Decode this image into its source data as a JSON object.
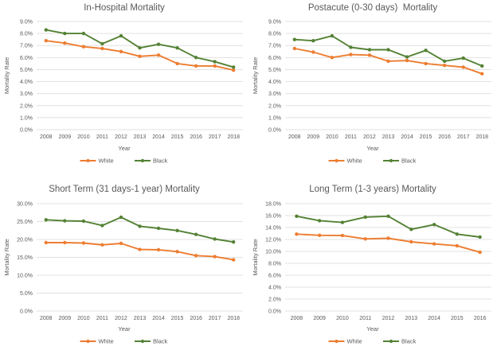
{
  "colors": {
    "white_series": "#ED7D31",
    "black_series": "#548235",
    "grid": "#E1E1E1",
    "text": "#595959",
    "background": "#FFFFFF"
  },
  "chart_data": [
    {
      "type": "line",
      "title": "In-Hospital Mortality",
      "xlabel": "Year",
      "ylabel": "Mortality Rate",
      "ylim": [
        0,
        9
      ],
      "ytick_step": 1,
      "ytick_format": "percent_1dp",
      "grid": true,
      "legend_position": "bottom",
      "categories": [
        "2008",
        "2009",
        "2010",
        "2011",
        "2012",
        "2013",
        "2014",
        "2015",
        "2016",
        "2017",
        "2018"
      ],
      "series": [
        {
          "name": "White",
          "color": "#ED7D31",
          "values": [
            7.4,
            7.2,
            6.9,
            6.75,
            6.5,
            6.1,
            6.2,
            5.5,
            5.3,
            5.3,
            4.95
          ]
        },
        {
          "name": "Black",
          "color": "#548235",
          "values": [
            8.3,
            8.0,
            8.0,
            7.15,
            7.8,
            6.8,
            7.1,
            6.8,
            6.0,
            5.65,
            5.2
          ]
        }
      ]
    },
    {
      "type": "line",
      "title": "Postacute (0-30 days)  Mortality",
      "xlabel": "Year",
      "ylabel": "Mortality Rate",
      "ylim": [
        0,
        9
      ],
      "ytick_step": 1,
      "ytick_format": "percent_1dp",
      "grid": true,
      "legend_position": "bottom",
      "categories": [
        "2008",
        "2009",
        "2010",
        "2011",
        "2012",
        "2013",
        "2014",
        "2015",
        "2016",
        "2017",
        "2018"
      ],
      "series": [
        {
          "name": "White",
          "color": "#ED7D31",
          "values": [
            6.75,
            6.45,
            6.0,
            6.25,
            6.2,
            5.7,
            5.75,
            5.5,
            5.35,
            5.2,
            4.65
          ]
        },
        {
          "name": "Black",
          "color": "#548235",
          "values": [
            7.5,
            7.4,
            7.8,
            6.85,
            6.65,
            6.65,
            6.05,
            6.6,
            5.7,
            5.95,
            5.3
          ]
        }
      ]
    },
    {
      "type": "line",
      "title": "Short Term (31 days-1 year) Mortality",
      "xlabel": "Year",
      "ylabel": "Mortality Rate",
      "ylim": [
        0,
        30
      ],
      "ytick_step": 5,
      "ytick_format": "percent_1dp",
      "grid": true,
      "legend_position": "bottom",
      "categories": [
        "2008",
        "2009",
        "2010",
        "2011",
        "2012",
        "2013",
        "2014",
        "2015",
        "2016",
        "2017",
        "2018"
      ],
      "series": [
        {
          "name": "White",
          "color": "#ED7D31",
          "values": [
            19.1,
            19.1,
            19.0,
            18.5,
            18.9,
            17.2,
            17.1,
            16.6,
            15.5,
            15.2,
            14.3
          ]
        },
        {
          "name": "Black",
          "color": "#548235",
          "values": [
            25.5,
            25.2,
            25.1,
            23.9,
            26.2,
            23.7,
            23.1,
            22.5,
            21.4,
            20.1,
            19.3
          ]
        }
      ]
    },
    {
      "type": "line",
      "title": "Long Term (1-3 years) Mortality",
      "xlabel": "Year",
      "ylabel": "Mortality Rate",
      "ylim": [
        0,
        18
      ],
      "ytick_step": 2,
      "ytick_format": "percent_1dp",
      "grid": true,
      "legend_position": "bottom",
      "categories": [
        "2008",
        "2009",
        "2010",
        "2011",
        "2012",
        "2013",
        "2014",
        "2015",
        "2016"
      ],
      "series": [
        {
          "name": "White",
          "color": "#ED7D31",
          "values": [
            12.9,
            12.7,
            12.65,
            12.1,
            12.2,
            11.6,
            11.25,
            10.95,
            9.85
          ]
        },
        {
          "name": "Black",
          "color": "#548235",
          "values": [
            15.9,
            15.15,
            14.85,
            15.75,
            15.9,
            13.7,
            14.5,
            12.9,
            12.4
          ]
        }
      ]
    }
  ]
}
